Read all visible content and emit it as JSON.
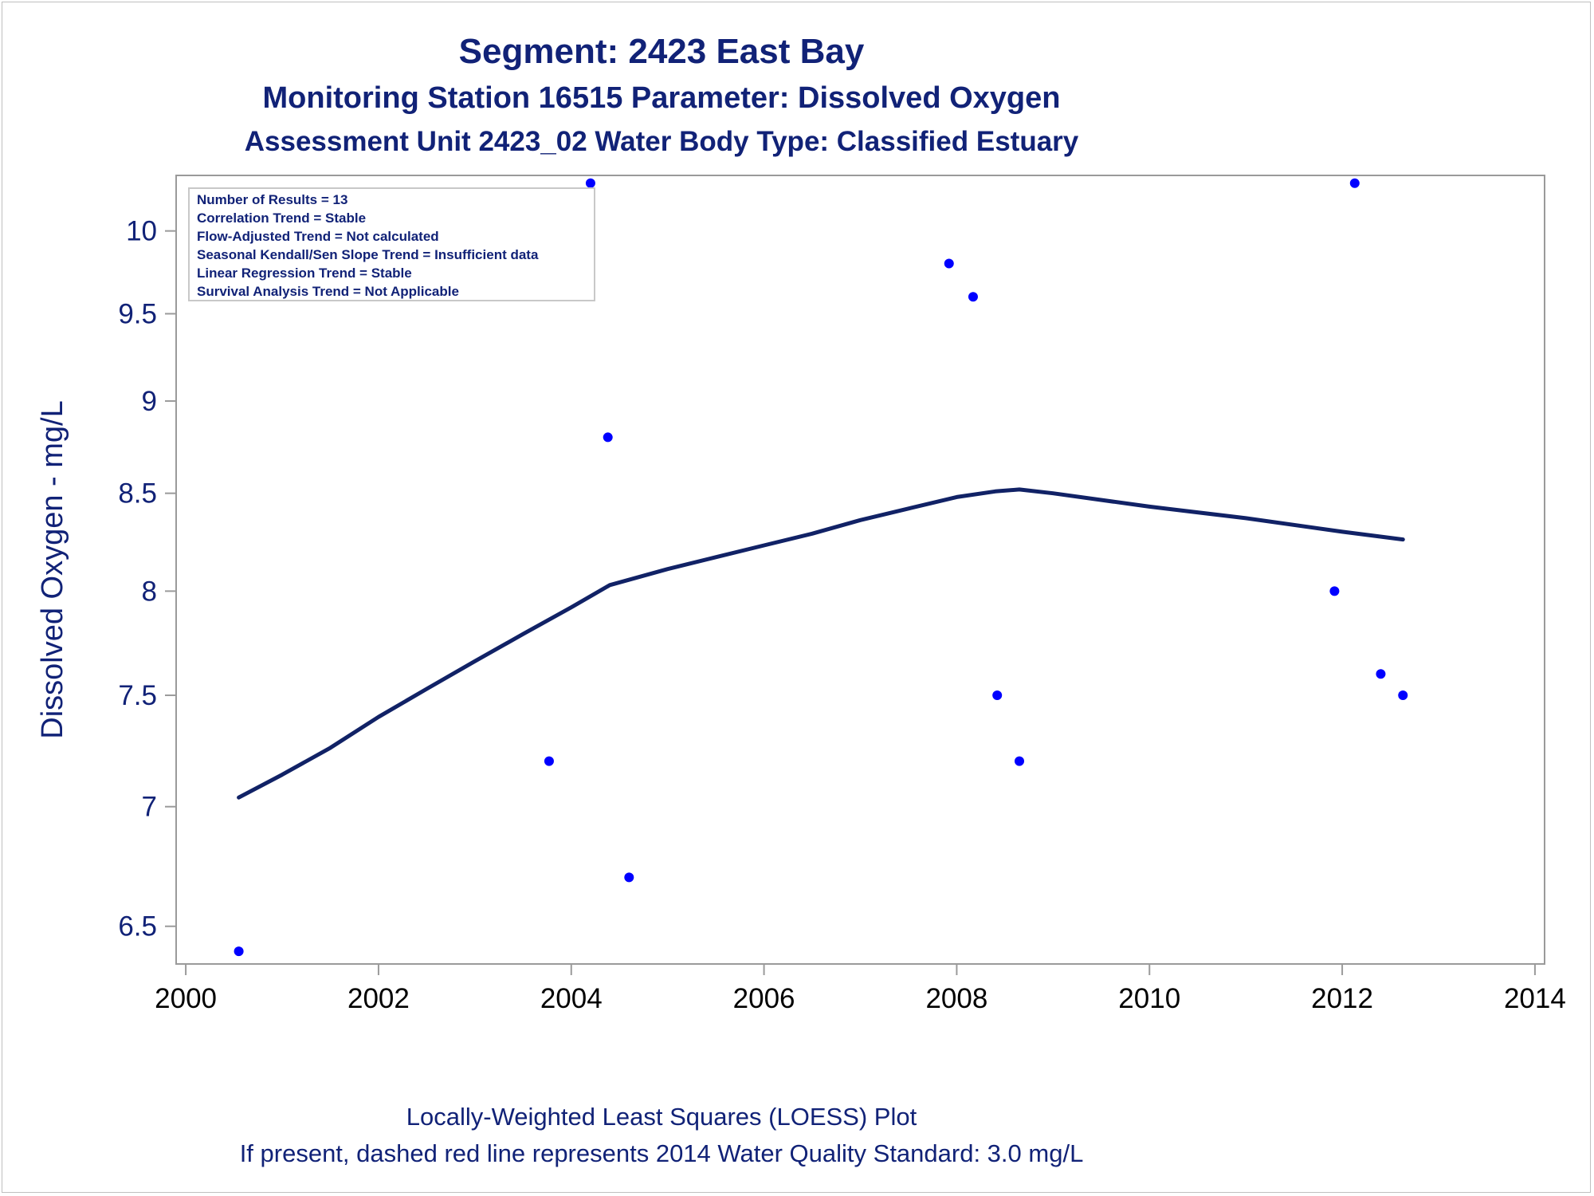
{
  "header": {
    "title": "Segment: 2423  East Bay",
    "subtitle": "Monitoring Station 16515 Parameter: Dissolved Oxygen",
    "subtitle2": "Assessment Unit 2423_02   Water Body Type: Classified Estuary"
  },
  "stats_box": {
    "lines": [
      "Number of Results = 13",
      "Correlation Trend = Stable",
      "Flow-Adjusted Trend = Not calculated",
      "Seasonal Kendall/Sen Slope Trend = Insufficient data",
      "Linear Regression Trend = Stable",
      "Survival Analysis Trend = Not Applicable"
    ]
  },
  "footer": {
    "line1": "Locally-Weighted Least Squares (LOESS) Plot",
    "line2": "If present, dashed red line represents 2014 Water Quality Standard: 3.0 mg/L"
  },
  "chart_data": {
    "type": "scatter",
    "title": "Segment: 2423  East Bay",
    "xlabel": "",
    "ylabel": "Dissolved Oxygen - mg/L",
    "y_scale": "log",
    "xlim": [
      1999.9,
      2014.1
    ],
    "ylim": [
      6.35,
      10.35
    ],
    "x_ticks": [
      2000,
      2002,
      2004,
      2006,
      2008,
      2010,
      2012,
      2014
    ],
    "x_tick_labels": [
      "2000",
      "2002",
      "2004",
      "2006",
      "2008",
      "2010",
      "2012",
      "2014"
    ],
    "y_ticks": [
      6.5,
      7,
      7.5,
      8,
      8.5,
      9,
      9.5,
      10
    ],
    "y_tick_labels": [
      "6.5",
      "7",
      "7.5",
      "8",
      "8.5",
      "9",
      "9.5",
      "10"
    ],
    "grid": false,
    "legend": "none",
    "points_color": "#0000ff",
    "line_color": "#112266",
    "text_color": "#112277",
    "series": [
      {
        "type": "scatter",
        "x": [
          2000.55,
          2003.77,
          2004.2,
          2004.38,
          2004.6,
          2007.92,
          2008.17,
          2008.42,
          2008.65,
          2011.92,
          2012.13,
          2012.4,
          2012.63
        ],
        "y": [
          6.4,
          7.2,
          10.3,
          8.8,
          6.7,
          9.8,
          9.6,
          7.5,
          7.2,
          8.0,
          10.3,
          7.6,
          7.5
        ]
      },
      {
        "type": "line",
        "x": [
          2000.55,
          2001.0,
          2001.5,
          2002.0,
          2002.5,
          2003.0,
          2003.5,
          2004.0,
          2004.4,
          2005.0,
          2005.5,
          2006.0,
          2006.5,
          2007.0,
          2007.5,
          2008.0,
          2008.4,
          2008.65,
          2009.0,
          2010.0,
          2011.0,
          2012.0,
          2012.63
        ],
        "y": [
          7.04,
          7.14,
          7.26,
          7.4,
          7.53,
          7.66,
          7.79,
          7.92,
          8.03,
          8.11,
          8.17,
          8.23,
          8.29,
          8.36,
          8.42,
          8.48,
          8.51,
          8.52,
          8.5,
          8.43,
          8.37,
          8.3,
          8.26
        ]
      }
    ]
  }
}
